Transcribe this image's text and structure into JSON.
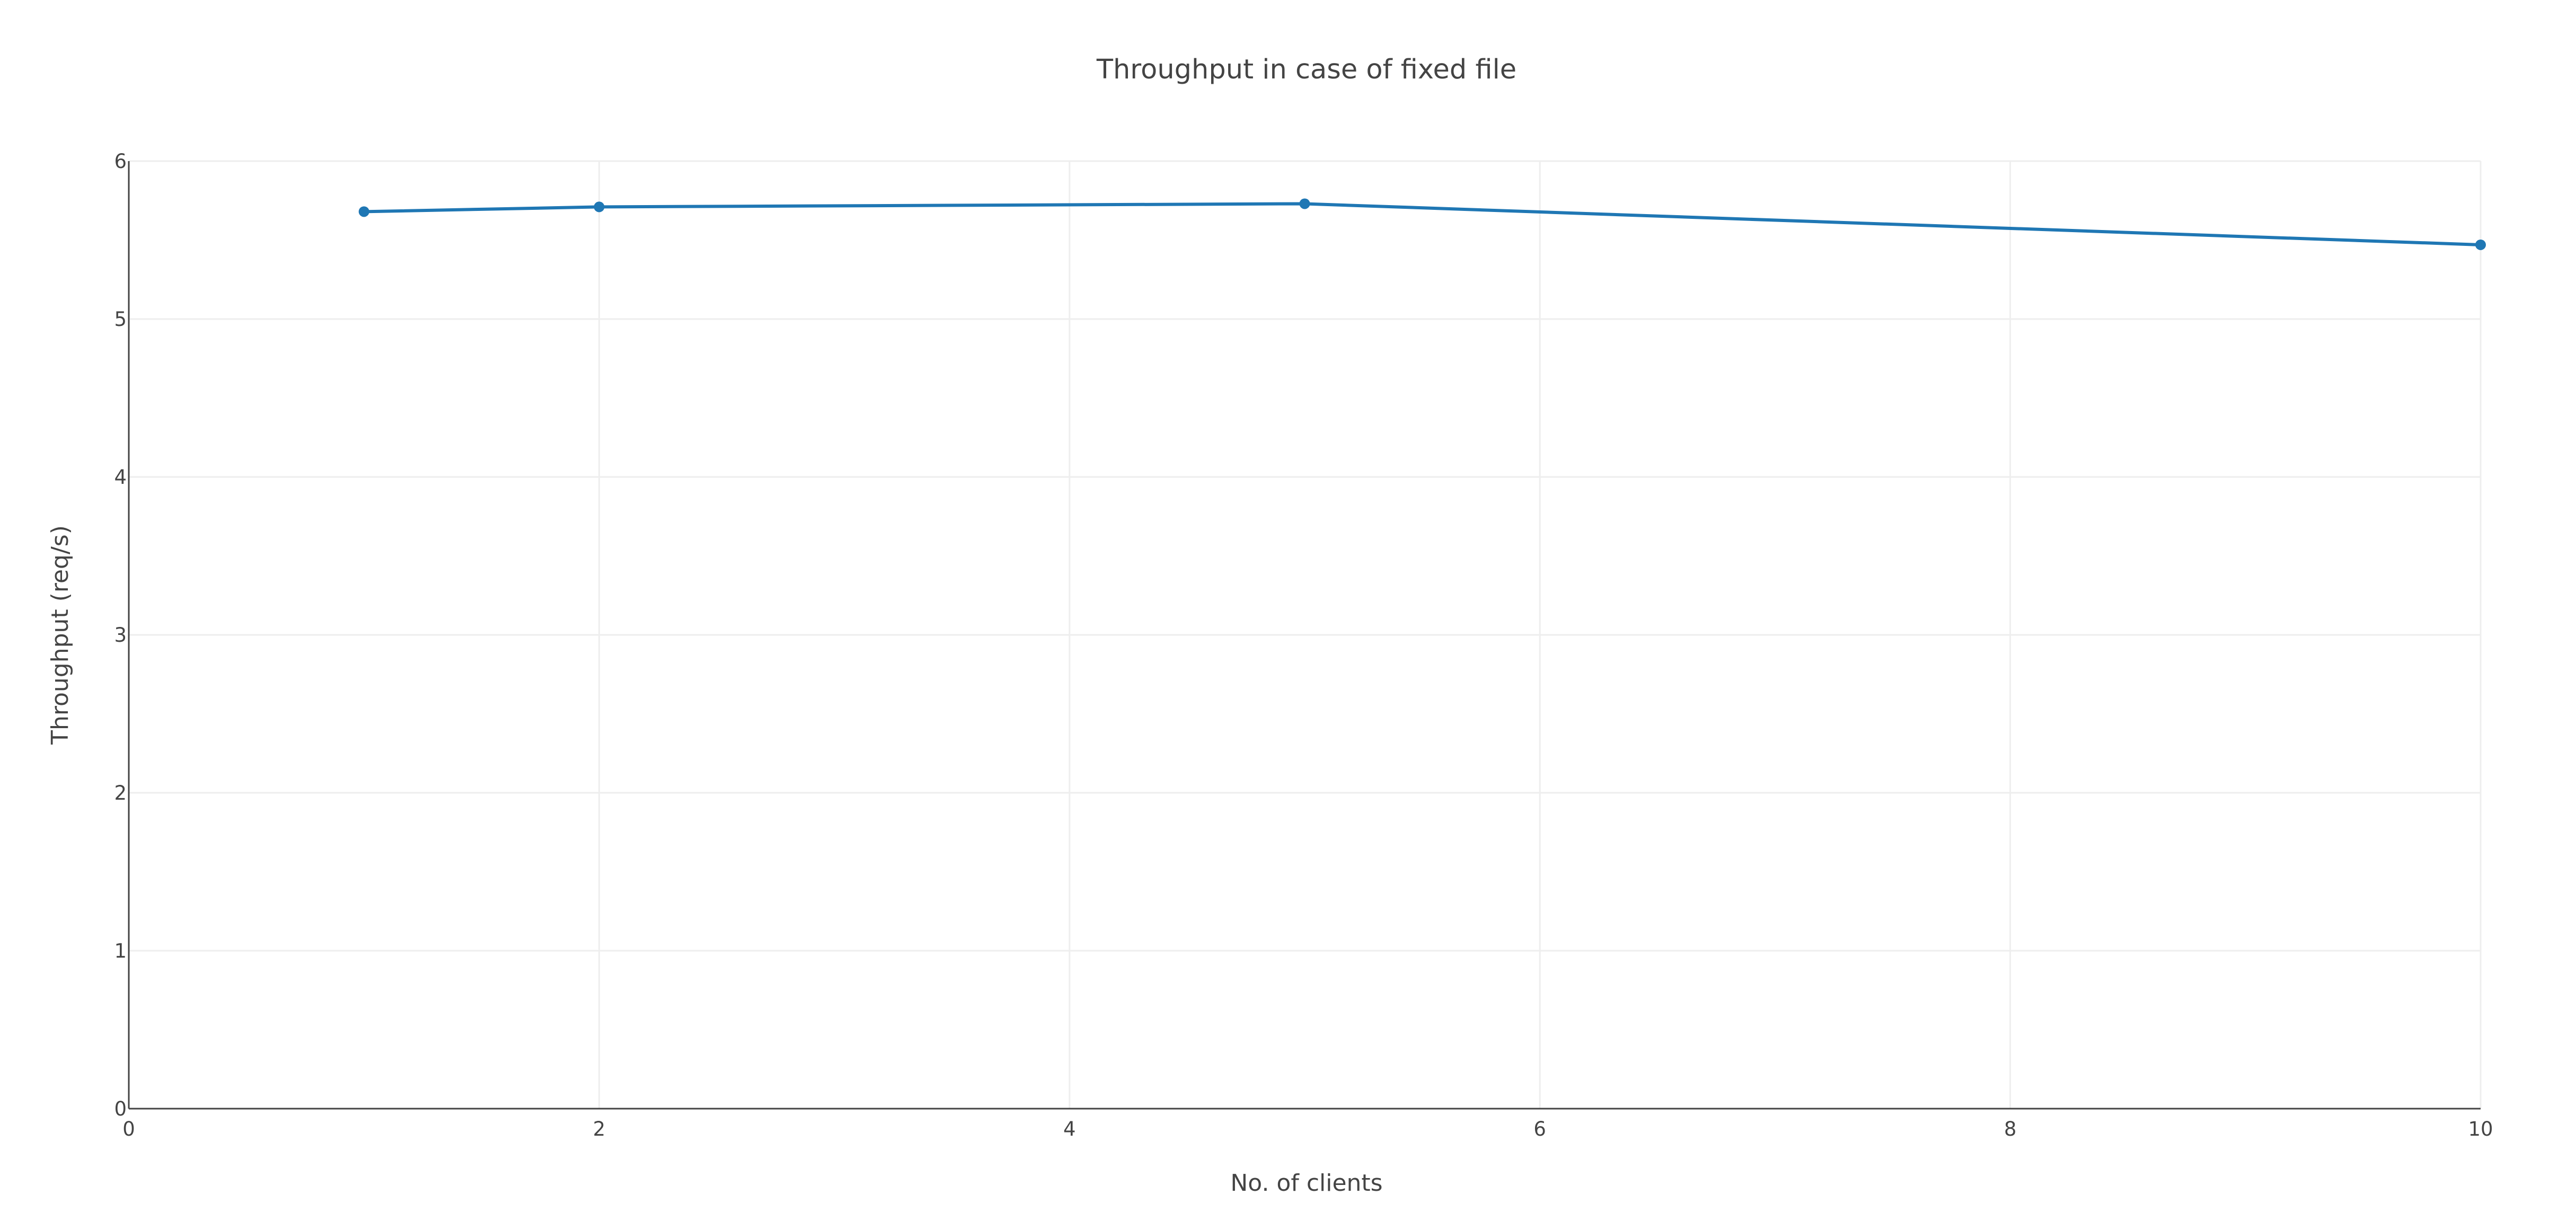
{
  "chart_data": {
    "type": "line",
    "title": "Throughput in case of fixed file",
    "xlabel": "No. of clients",
    "ylabel": "Throughput (req/s)",
    "xlim": [
      0,
      10
    ],
    "ylim": [
      0,
      6
    ],
    "x_ticks": [
      "0",
      "2",
      "4",
      "6",
      "8",
      "10"
    ],
    "y_ticks": [
      "0",
      "1",
      "2",
      "3",
      "4",
      "5",
      "6"
    ],
    "grid": true,
    "legend": "none",
    "series": [
      {
        "color": "#1f77b4",
        "x": [
          1,
          2,
          5,
          10
        ],
        "y": [
          5.68,
          5.71,
          5.73,
          5.47
        ]
      }
    ]
  }
}
